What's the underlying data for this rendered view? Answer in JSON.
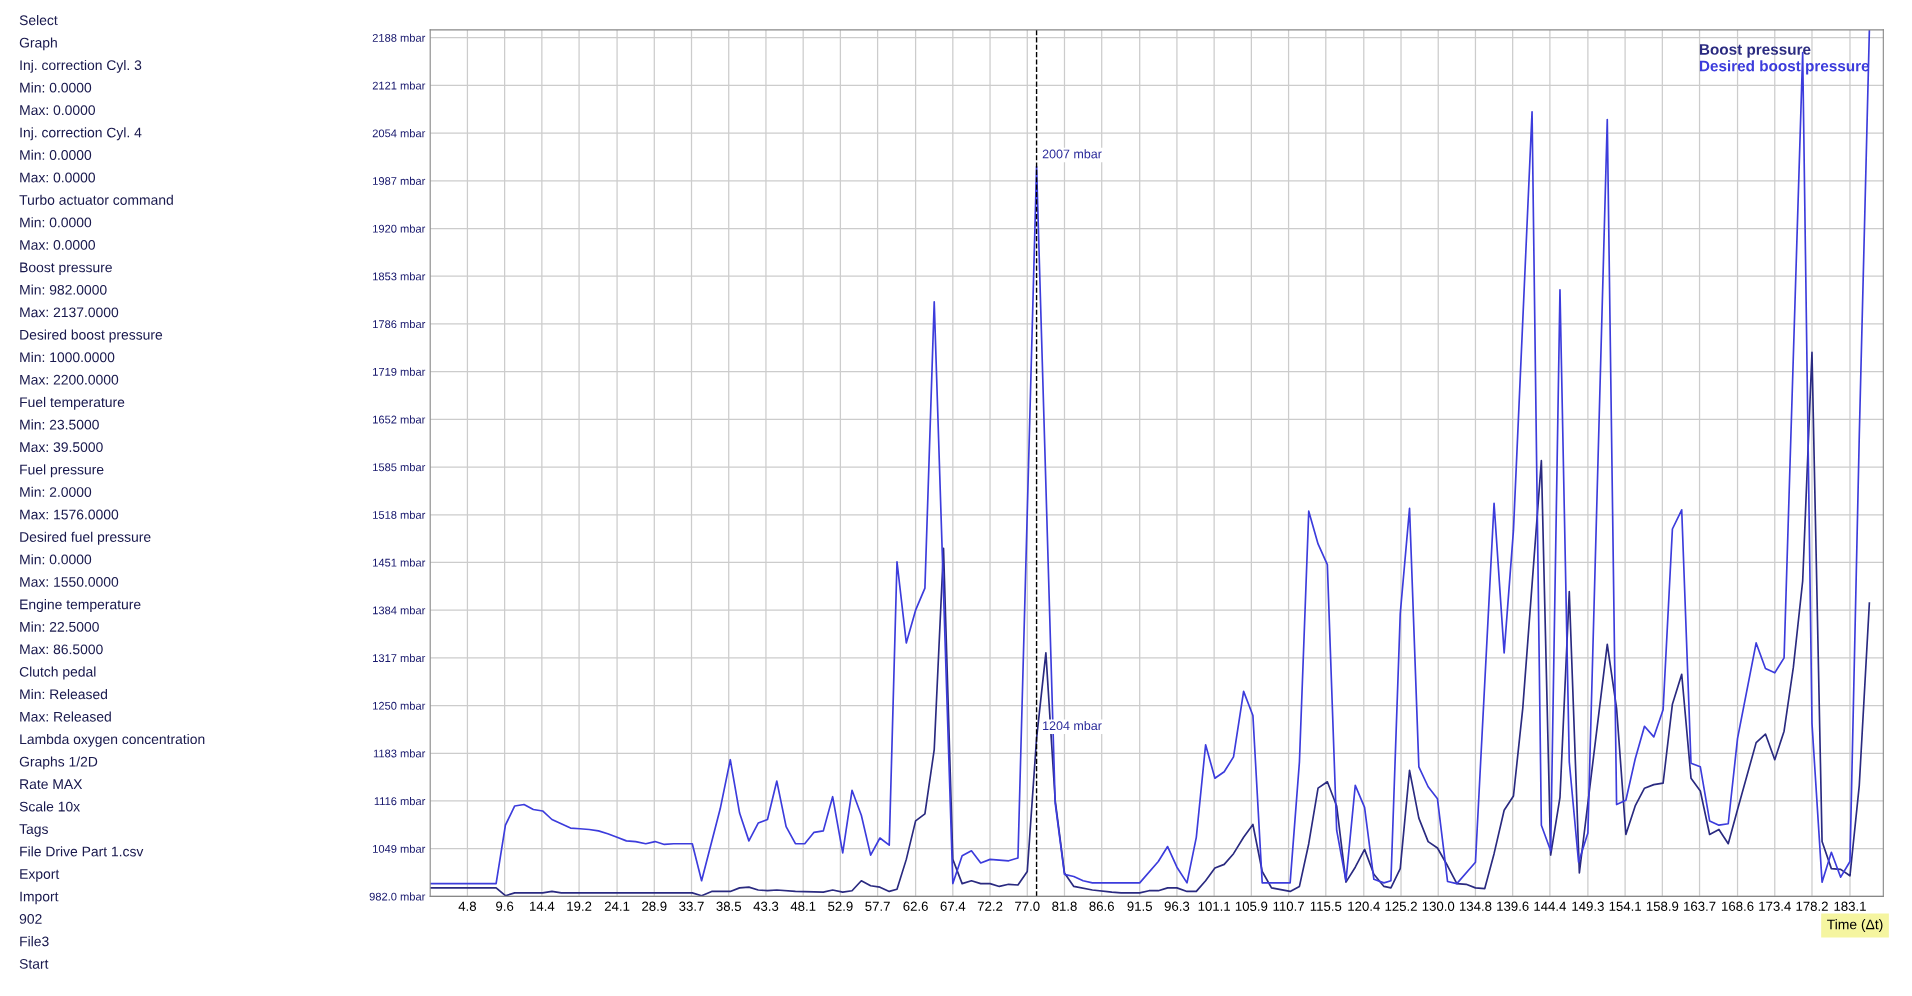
{
  "chart_data": {
    "type": "line",
    "xlabel": "Time (Δt)",
    "legend": "top right",
    "grid": true,
    "marker": "none",
    "line_style": "solid",
    "xlim": [
      0,
      187.4
    ],
    "ylim": [
      982,
      2199
    ],
    "xticks": [
      4.8,
      9.6,
      14.4,
      19.2,
      24.1,
      28.9,
      33.7,
      38.5,
      43.3,
      48.1,
      52.9,
      57.7,
      62.6,
      67.4,
      72.2,
      {
        "value": 77.0,
        "label": "77.0"
      },
      81.8,
      86.6,
      91.5,
      96.3,
      101.1,
      105.9,
      110.7,
      115.5,
      120.4,
      125.2,
      {
        "value": 130.0,
        "label": "130.0"
      },
      134.8,
      139.6,
      144.4,
      149.3,
      154.1,
      158.9,
      163.7,
      168.6,
      173.4,
      178.2,
      183.1
    ],
    "yticks": [
      {
        "value": 982,
        "label": "982.0 mbar"
      },
      {
        "value": 1049,
        "label": "1049 mbar"
      },
      {
        "value": 1116,
        "label": "1116 mbar"
      },
      {
        "value": 1183,
        "label": "1183 mbar"
      },
      {
        "value": 1250,
        "label": "1250 mbar"
      },
      {
        "value": 1317,
        "label": "1317 mbar"
      },
      {
        "value": 1384,
        "label": "1384 mbar"
      },
      {
        "value": 1451,
        "label": "1451 mbar"
      },
      {
        "value": 1518,
        "label": "1518 mbar"
      },
      {
        "value": 1585,
        "label": "1585 mbar"
      },
      {
        "value": 1652,
        "label": "1652 mbar"
      },
      {
        "value": 1719,
        "label": "1719 mbar"
      },
      {
        "value": 1786,
        "label": "1786 mbar"
      },
      {
        "value": 1853,
        "label": "1853 mbar"
      },
      {
        "value": 1920,
        "label": "1920 mbar"
      },
      {
        "value": 1987,
        "label": "1987 mbar"
      },
      {
        "value": 2054,
        "label": "2054 mbar"
      },
      {
        "value": 2121,
        "label": "2121 mbar"
      },
      {
        "value": 2188,
        "label": "2188 mbar"
      }
    ],
    "series": [
      {
        "name": "Boost pressure",
        "color": "#2a2a80",
        "x": [
          0,
          8.5,
          9.7,
          10.9,
          14.5,
          15.7,
          16.9,
          33.8,
          35.0,
          36.3,
          38.7,
          39.9,
          41.1,
          42.3,
          43.5,
          44.7,
          47.1,
          50.7,
          51.9,
          53.2,
          54.4,
          55.6,
          56.8,
          58.0,
          59.2,
          60.2,
          61.4,
          62.6,
          63.8,
          65.0,
          66.2,
          67.4,
          68.6,
          69.8,
          71.0,
          72.2,
          73.4,
          74.6,
          75.8,
          77.0,
          78.2,
          79.4,
          80.6,
          81.8,
          83.0,
          85.4,
          87.9,
          89.1,
          91.5,
          92.7,
          93.9,
          95.1,
          96.3,
          97.6,
          98.8,
          100.0,
          101.2,
          102.4,
          103.6,
          104.9,
          106.1,
          107.3,
          108.5,
          110.9,
          112.1,
          113.3,
          114.5,
          115.7,
          116.9,
          118.1,
          119.3,
          120.5,
          121.7,
          123.0,
          123.9,
          125.1,
          126.3,
          127.5,
          128.7,
          129.9,
          131.2,
          132.4,
          133.6,
          134.8,
          136.0,
          137.2,
          138.5,
          139.7,
          140.9,
          143.3,
          144.5,
          145.7,
          146.9,
          148.2,
          151.8,
          153.0,
          154.2,
          155.4,
          156.6,
          157.8,
          159.0,
          160.2,
          161.4,
          162.6,
          163.8,
          165.0,
          166.2,
          167.4,
          168.6,
          171.0,
          172.2,
          173.4,
          174.6,
          175.8,
          177.0,
          178.2,
          179.5,
          180.7,
          181.9,
          183.1,
          184.3,
          185.6
        ],
        "values": [
          994,
          994,
          983,
          987,
          987,
          989,
          987,
          987,
          983,
          989,
          989,
          994,
          995,
          991,
          990,
          991,
          989,
          988,
          991,
          988,
          990,
          1004,
          997,
          995,
          989,
          992,
          1034,
          1088,
          1098,
          1188,
          1471,
          1034,
          1000,
          1004,
          1000,
          1000,
          996,
          999,
          998,
          1017,
          1204,
          1324,
          1117,
          1015,
          996,
          991,
          988,
          987,
          987,
          990,
          990,
          994,
          994,
          989,
          989,
          1004,
          1022,
          1027,
          1042,
          1065,
          1083,
          1017,
          994,
          989,
          996,
          1056,
          1134,
          1143,
          1109,
          1002,
          1023,
          1048,
          1013,
          996,
          994,
          1021,
          1159,
          1092,
          1059,
          1050,
          1025,
          1000,
          999,
          994,
          993,
          1042,
          1103,
          1123,
          1246,
          1594,
          1040,
          1121,
          1410,
          1015,
          1336,
          1246,
          1069,
          1109,
          1134,
          1139,
          1141,
          1252,
          1294,
          1148,
          1130,
          1069,
          1076,
          1056,
          1104,
          1198,
          1210,
          1174,
          1214,
          1304,
          1425,
          1746,
          1059,
          1021,
          1020,
          1011,
          1138,
          1394
        ]
      },
      {
        "name": "Desired boost pressure",
        "color": "#3c3cdc",
        "x": [
          0,
          8.5,
          9.7,
          10.9,
          12.1,
          13.3,
          14.5,
          15.7,
          16.9,
          18.1,
          19.3,
          20.5,
          21.7,
          22.9,
          24.1,
          25.3,
          26.5,
          27.8,
          29.0,
          30.2,
          31.4,
          33.8,
          35.0,
          37.4,
          38.7,
          39.9,
          41.1,
          42.3,
          43.5,
          44.7,
          45.9,
          47.1,
          48.3,
          49.5,
          50.7,
          51.9,
          53.2,
          54.4,
          55.6,
          56.8,
          58.0,
          59.2,
          60.2,
          61.4,
          62.6,
          63.8,
          65.0,
          67.4,
          68.6,
          69.8,
          71.0,
          72.2,
          74.6,
          75.8,
          78.2,
          80.6,
          81.8,
          83.0,
          84.2,
          85.4,
          91.5,
          93.9,
          95.1,
          96.3,
          97.6,
          98.8,
          100.0,
          101.2,
          102.4,
          103.6,
          104.9,
          106.1,
          107.3,
          110.9,
          112.1,
          113.3,
          114.5,
          115.7,
          116.9,
          118.1,
          119.3,
          120.5,
          121.7,
          123.0,
          123.9,
          125.1,
          126.3,
          127.5,
          128.7,
          129.9,
          131.2,
          132.4,
          134.8,
          137.2,
          138.5,
          139.7,
          142.1,
          143.3,
          144.5,
          145.7,
          146.9,
          148.1,
          149.3,
          151.8,
          153.0,
          154.2,
          155.4,
          156.6,
          157.8,
          159.0,
          160.2,
          161.4,
          162.6,
          163.8,
          165.0,
          166.2,
          167.4,
          168.6,
          171.0,
          172.2,
          173.4,
          174.6,
          177.0,
          178.2,
          179.5,
          180.7,
          181.9,
          183.1,
          184.3,
          185.6
        ],
        "values": [
          1000,
          1000,
          1082,
          1109,
          1111,
          1104,
          1102,
          1090,
          1084,
          1078,
          1077,
          1076,
          1074,
          1070,
          1065,
          1060,
          1059,
          1056,
          1059,
          1055,
          1056,
          1056,
          1004,
          1105,
          1174,
          1099,
          1060,
          1085,
          1090,
          1144,
          1080,
          1056,
          1056,
          1072,
          1074,
          1122,
          1043,
          1131,
          1096,
          1040,
          1064,
          1054,
          1452,
          1338,
          1384,
          1415,
          1817,
          1000,
          1039,
          1046,
          1029,
          1034,
          1032,
          1036,
          2007,
          1113,
          1013,
          1010,
          1004,
          1001,
          1001,
          1031,
          1052,
          1023,
          1001,
          1065,
          1195,
          1148,
          1157,
          1178,
          1270,
          1236,
          1001,
          1001,
          1171,
          1523,
          1477,
          1448,
          1075,
          1004,
          1138,
          1107,
          1006,
          1001,
          1004,
          1379,
          1527,
          1164,
          1136,
          1119,
          1003,
          1000,
          1030,
          1534,
          1324,
          1496,
          2084,
          1082,
          1046,
          1834,
          1171,
          1030,
          1071,
          2073,
          1111,
          1117,
          1175,
          1221,
          1206,
          1244,
          1498,
          1525,
          1169,
          1164,
          1088,
          1082,
          1084,
          1204,
          1338,
          1302,
          1296,
          1317,
          2167,
          1225,
          1002,
          1044,
          1009,
          1031,
          1629,
          2198
        ]
      }
    ],
    "ref_lines": [
      {
        "axis": "x",
        "value": 78.2,
        "label": null,
        "color": "#000000",
        "line_style": "dashed"
      }
    ],
    "annotations": [
      {
        "text": "2007 mbar",
        "x": 78.2,
        "y": 2007
      },
      {
        "text": "1204 mbar",
        "x": 78.2,
        "y": 1204
      },
      "Select",
      "Graph",
      "Inj. correction Cyl. 3",
      "Min: 0.0000",
      "Max: 0.0000",
      "Inj. correction Cyl. 4",
      "Min: 0.0000",
      "Max: 0.0000",
      "Turbo actuator command",
      "Min: 0.0000",
      "Max: 0.0000",
      "Boost pressure",
      "Min: 982.0000",
      "Max: 2137.0000",
      "Desired boost pressure",
      "Min: 1000.0000",
      "Max: 2200.0000",
      "Fuel temperature",
      "Min: 23.5000",
      "Max: 39.5000",
      "Fuel pressure",
      "Min: 2.0000",
      "Max: 1576.0000",
      "Desired fuel pressure",
      "Min: 0.0000",
      "Max: 1550.0000",
      "Engine temperature",
      "Min: 22.5000",
      "Max: 86.5000",
      "Clutch pedal",
      "Min: Released",
      "Max: Released",
      "Lambda oxygen concentration",
      "Graphs 1/2D",
      "Rate MAX",
      "Scale 10x",
      "Tags",
      "File Drive Part 1.csv",
      "Export",
      "Import",
      "902",
      "File3",
      "Start"
    ]
  }
}
